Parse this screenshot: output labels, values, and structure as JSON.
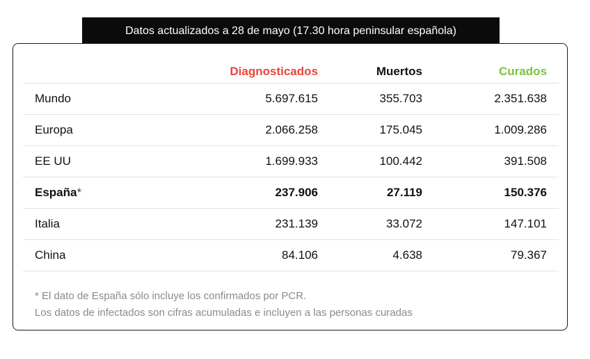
{
  "banner": "Datos actualizados a 28 de mayo (17.30 hora peninsular española)",
  "colors": {
    "diagnosticados": "#e8453c",
    "muertos": "#111111",
    "curados": "#7cc242"
  },
  "headers": {
    "diagnosticados": "Diagnosticados",
    "muertos": "Muertos",
    "curados": "Curados"
  },
  "rows": [
    {
      "name": "Mundo",
      "diag": "5.697.615",
      "dead": "355.703",
      "cured": "2.351.638"
    },
    {
      "name": "Europa",
      "diag": "2.066.258",
      "dead": "175.045",
      "cured": "1.009.286"
    },
    {
      "name": "EE UU",
      "diag": "1.699.933",
      "dead": "100.442",
      "cured": "391.508"
    },
    {
      "name": "España",
      "mark": "*",
      "diag": "237.906",
      "dead": "27.119",
      "cured": "150.376"
    },
    {
      "name": "Italia",
      "diag": "231.139",
      "dead": "33.072",
      "cured": "147.101"
    },
    {
      "name": "China",
      "diag": "84.106",
      "dead": "4.638",
      "cured": "79.367"
    }
  ],
  "notes": [
    "* El dato de España sólo incluye los confirmados por PCR.",
    "Los datos de infectados son cifras acumuladas e incluyen a las personas curadas"
  ]
}
